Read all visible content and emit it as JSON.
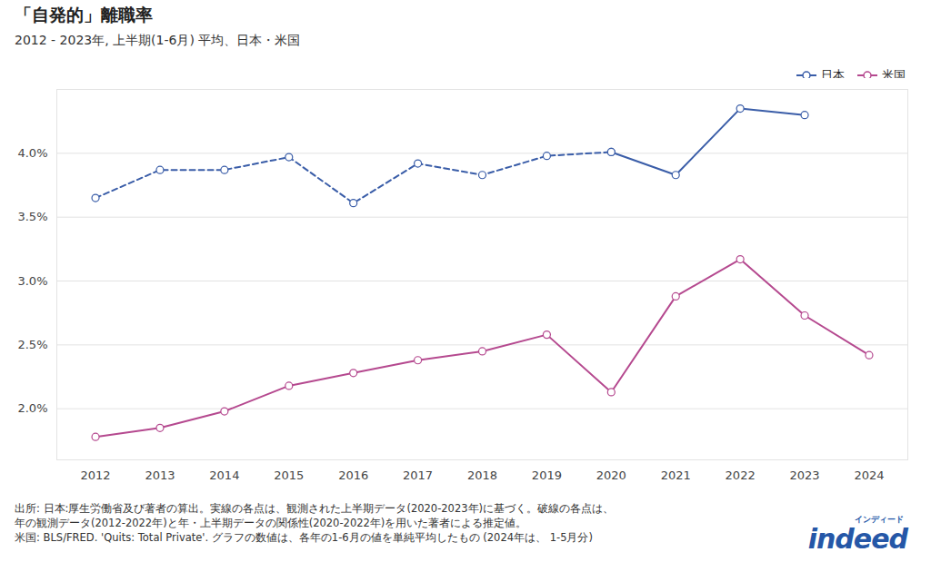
{
  "chart_data": {
    "type": "line",
    "title": "「自発的」離職率",
    "subtitle": "2012 - 2023年, 上半期(1-6月) 平均、日本・米国",
    "x": [
      2012,
      2013,
      2014,
      2015,
      2016,
      2017,
      2018,
      2019,
      2020,
      2021,
      2022,
      2023,
      2024
    ],
    "xlim": [
      2011.4,
      2024.6
    ],
    "xticks": [
      2012,
      2013,
      2014,
      2015,
      2016,
      2017,
      2018,
      2019,
      2020,
      2021,
      2022,
      2023,
      2024
    ],
    "ylim": [
      1.6,
      4.5
    ],
    "yticks": [
      {
        "value": 2,
        "label": "2.0%"
      },
      {
        "value": 2.5,
        "label": "2.5%"
      },
      {
        "value": 3,
        "label": "3.0%"
      },
      {
        "value": 3.5,
        "label": "3.5%"
      },
      {
        "value": 4,
        "label": "4.0%"
      }
    ],
    "grid": true,
    "legend": "top-right",
    "series": [
      {
        "name": "日本",
        "color": "#3a5da8",
        "marker": "circle",
        "line_style": "dashed",
        "values": [
          3.65,
          3.87,
          3.87,
          3.97,
          3.61,
          3.92,
          3.83,
          3.98,
          4.01,
          null,
          null,
          null,
          null
        ]
      },
      {
        "name": "日本",
        "color": "#3a5da8",
        "marker": "circle",
        "line_style": "solid",
        "values": [
          null,
          null,
          null,
          null,
          null,
          null,
          null,
          null,
          4.01,
          3.83,
          4.35,
          4.3,
          null
        ]
      },
      {
        "name": "米国",
        "color": "#b5498f",
        "marker": "circle",
        "line_style": "solid",
        "values": [
          1.78,
          1.85,
          1.98,
          2.18,
          2.28,
          2.38,
          2.45,
          2.58,
          2.13,
          2.88,
          3.17,
          2.73,
          2.42
        ]
      }
    ],
    "source": [
      "出所: 日本:厚生労働省及び著者の算出。実線の各点は、観測された上半期データ(2020-2023年)に基づく。破線の各点は、",
      "年の観測データ(2012-2022年)と年・上半期データの関係性(2020-2022年)を用いた著者による推定値。",
      "米国: BLS/FRED. 'Quits: Total Private'. グラフの数値は、各年の1-6月の値を単純平均したもの (2024年は、 1-5月分)"
    ],
    "logo": "indeed",
    "logo_subtitle": "インディード"
  }
}
